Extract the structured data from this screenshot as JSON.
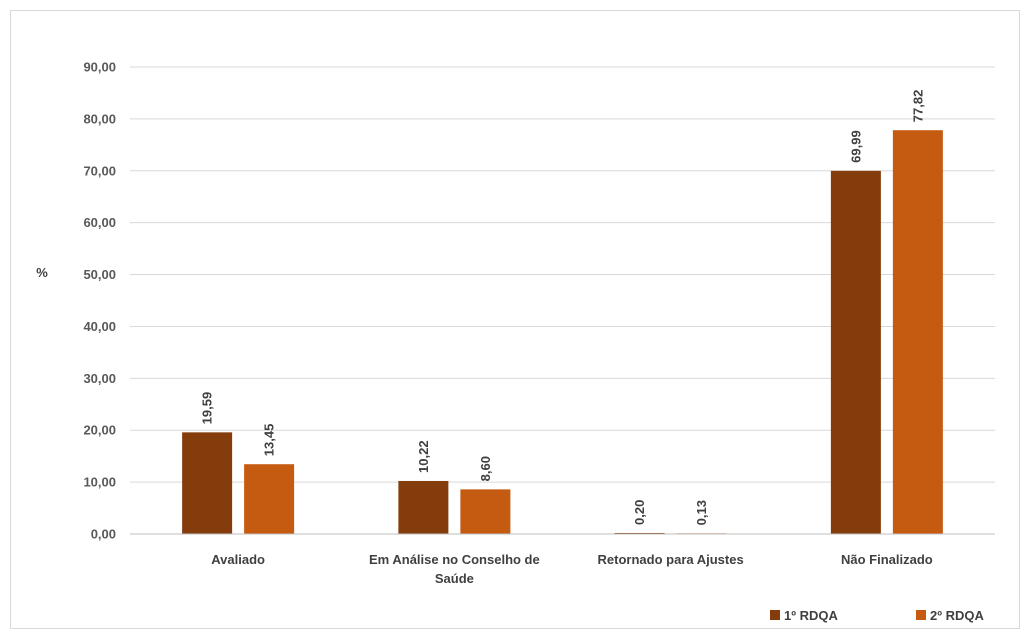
{
  "chart_data": {
    "type": "bar",
    "title": "",
    "xlabel": "",
    "ylabel": "%",
    "ylim": [
      0,
      90
    ],
    "yticks": [
      "0,00",
      "10,00",
      "20,00",
      "30,00",
      "40,00",
      "50,00",
      "60,00",
      "70,00",
      "80,00",
      "90,00"
    ],
    "categories": [
      [
        "Avaliado"
      ],
      [
        "Em Análise no Conselho de",
        "Saúde"
      ],
      [
        "Retornado para Ajustes"
      ],
      [
        "Não Finalizado"
      ]
    ],
    "series": [
      {
        "name": "1º RDQA",
        "color": "#843C0C",
        "values": [
          19.59,
          10.22,
          0.2,
          69.99
        ],
        "labels": [
          "19,59",
          "10,22",
          "0,20",
          "69,99"
        ]
      },
      {
        "name": "2º RDQA",
        "color": "#C55A11",
        "values": [
          13.45,
          8.6,
          0.13,
          77.82
        ],
        "labels": [
          "13,45",
          "8,60",
          "0,13",
          "77,82"
        ]
      }
    ],
    "grid": true,
    "legend_position": "bottom-right"
  }
}
